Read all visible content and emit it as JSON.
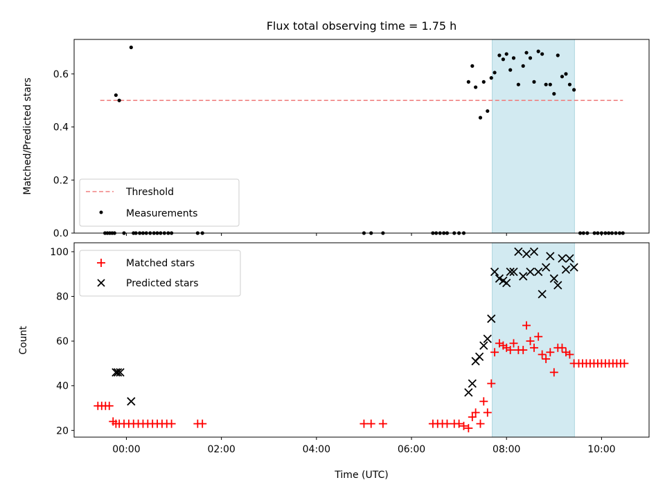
{
  "chart_data": [
    {
      "type": "scatter",
      "title": "Flux total observing time = 1.75 h",
      "ylabel": "Matched/Predicted stars",
      "xlabel": "",
      "xlim_hours": [
        -1.1,
        11.0
      ],
      "ylim": [
        0,
        0.73
      ],
      "yticks": [
        0,
        0.2,
        0.4,
        0.6
      ],
      "ytick_labels": [
        "0.0",
        "0.2",
        "0.4",
        "0.6"
      ],
      "xticks_hours": [
        0,
        2,
        4,
        6,
        8,
        10
      ],
      "xtick_labels": [
        "",
        "",
        "",
        "",
        "",
        ""
      ],
      "observing_window_hours": [
        7.7,
        9.43
      ],
      "threshold": {
        "name": "Threshold",
        "value": 0.5,
        "x_hours": [
          -0.55,
          10.45
        ],
        "color": "#f08080",
        "style": "dashed"
      },
      "legend": {
        "position": "lower-left",
        "entries": [
          "Threshold",
          "Measurements"
        ]
      },
      "series": [
        {
          "name": "Measurements",
          "marker": "dot",
          "color": "#000000",
          "x_hours": [
            -0.22,
            -0.15,
            0.1,
            7.2,
            7.28,
            7.35,
            7.45,
            7.52,
            7.6,
            7.68,
            7.75,
            7.85,
            7.93,
            8.0,
            8.08,
            8.15,
            8.25,
            8.35,
            8.42,
            8.5,
            8.58,
            8.67,
            8.75,
            8.83,
            8.92,
            9.0,
            9.08,
            9.17,
            9.25,
            9.33,
            9.42,
            -0.45,
            -0.4,
            -0.35,
            -0.3,
            -0.25,
            -0.05,
            0.15,
            0.2,
            0.28,
            0.35,
            0.42,
            0.5,
            0.58,
            0.65,
            0.72,
            0.8,
            0.88,
            0.95,
            1.5,
            1.6,
            5.0,
            5.15,
            5.4,
            6.45,
            6.52,
            6.6,
            6.68,
            6.75,
            6.9,
            7.0,
            7.1,
            9.55,
            9.62,
            9.7,
            9.85,
            9.92,
            10.0,
            10.08,
            10.15,
            10.22,
            10.3,
            10.38,
            10.45
          ],
          "y": [
            0.52,
            0.5,
            0.7,
            0.57,
            0.63,
            0.55,
            0.435,
            0.57,
            0.46,
            0.585,
            0.605,
            0.67,
            0.655,
            0.675,
            0.615,
            0.66,
            0.56,
            0.63,
            0.68,
            0.66,
            0.57,
            0.685,
            0.675,
            0.56,
            0.56,
            0.525,
            0.67,
            0.59,
            0.6,
            0.56,
            0.54,
            0,
            0,
            0,
            0,
            0,
            0,
            0,
            0,
            0,
            0,
            0,
            0,
            0,
            0,
            0,
            0,
            0,
            0,
            0,
            0,
            0,
            0,
            0,
            0,
            0,
            0,
            0,
            0,
            0,
            0,
            0,
            0,
            0,
            0,
            0,
            0,
            0,
            0,
            0,
            0,
            0,
            0,
            0
          ]
        }
      ]
    },
    {
      "type": "scatter",
      "title": "",
      "ylabel": "Count",
      "xlabel": "Time (UTC)",
      "xlim_hours": [
        -1.1,
        11.0
      ],
      "ylim": [
        17,
        104
      ],
      "yticks": [
        20,
        40,
        60,
        80,
        100
      ],
      "ytick_labels": [
        "20",
        "40",
        "60",
        "80",
        "100"
      ],
      "xticks_hours": [
        0,
        2,
        4,
        6,
        8,
        10
      ],
      "xtick_labels": [
        "00:00",
        "02:00",
        "04:00",
        "06:00",
        "08:00",
        "10:00"
      ],
      "observing_window_hours": [
        7.7,
        9.43
      ],
      "legend": {
        "position": "top-left",
        "entries": [
          "Matched stars",
          "Predicted stars"
        ]
      },
      "series": [
        {
          "name": "Matched stars",
          "marker": "plus",
          "color": "#ff0000",
          "x_hours": [
            -0.6,
            -0.52,
            -0.44,
            -0.36,
            -0.28,
            -0.22,
            -0.15,
            -0.05,
            0.05,
            0.15,
            0.25,
            0.35,
            0.45,
            0.55,
            0.65,
            0.75,
            0.85,
            0.95,
            1.5,
            1.6,
            5.0,
            5.15,
            5.4,
            6.45,
            6.55,
            6.65,
            6.75,
            6.9,
            7.0,
            7.1,
            7.2,
            7.28,
            7.35,
            7.45,
            7.52,
            7.6,
            7.68,
            7.75,
            7.85,
            7.93,
            8.0,
            8.08,
            8.15,
            8.25,
            8.35,
            8.42,
            8.5,
            8.58,
            8.67,
            8.75,
            8.83,
            8.92,
            9.0,
            9.08,
            9.17,
            9.25,
            9.33,
            9.42,
            9.52,
            9.6,
            9.68,
            9.76,
            9.84,
            9.92,
            10.0,
            10.08,
            10.16,
            10.24,
            10.32,
            10.4,
            10.48
          ],
          "y": [
            31,
            31,
            31,
            31,
            24,
            23,
            23,
            23,
            23,
            23,
            23,
            23,
            23,
            23,
            23,
            23,
            23,
            23,
            23,
            23,
            23,
            23,
            23,
            23,
            23,
            23,
            23,
            23,
            23,
            22,
            21,
            26,
            28,
            23,
            33,
            28,
            41,
            55,
            59,
            58,
            57,
            56,
            59,
            56,
            56,
            67,
            60,
            57,
            62,
            54,
            52,
            55,
            46,
            57,
            57,
            55,
            54,
            50,
            50,
            50,
            50,
            50,
            50,
            50,
            50,
            50,
            50,
            50,
            50,
            50,
            50
          ]
        },
        {
          "name": "Predicted stars",
          "marker": "x",
          "color": "#000000",
          "x_hours": [
            -0.22,
            -0.18,
            -0.13,
            0.1,
            7.2,
            7.28,
            7.35,
            7.43,
            7.52,
            7.6,
            7.68,
            7.75,
            7.85,
            7.93,
            8.0,
            8.08,
            8.15,
            8.25,
            8.35,
            8.42,
            8.5,
            8.58,
            8.67,
            8.75,
            8.83,
            8.92,
            9.0,
            9.08,
            9.17,
            9.25,
            9.33,
            9.42
          ],
          "y": [
            46,
            46,
            46,
            33,
            37,
            41,
            51,
            53,
            58,
            61,
            70,
            91,
            88,
            87,
            86,
            91,
            91,
            100,
            89,
            99,
            91,
            100,
            91,
            81,
            93,
            98,
            88,
            85,
            97,
            92,
            97,
            93
          ]
        }
      ]
    }
  ]
}
